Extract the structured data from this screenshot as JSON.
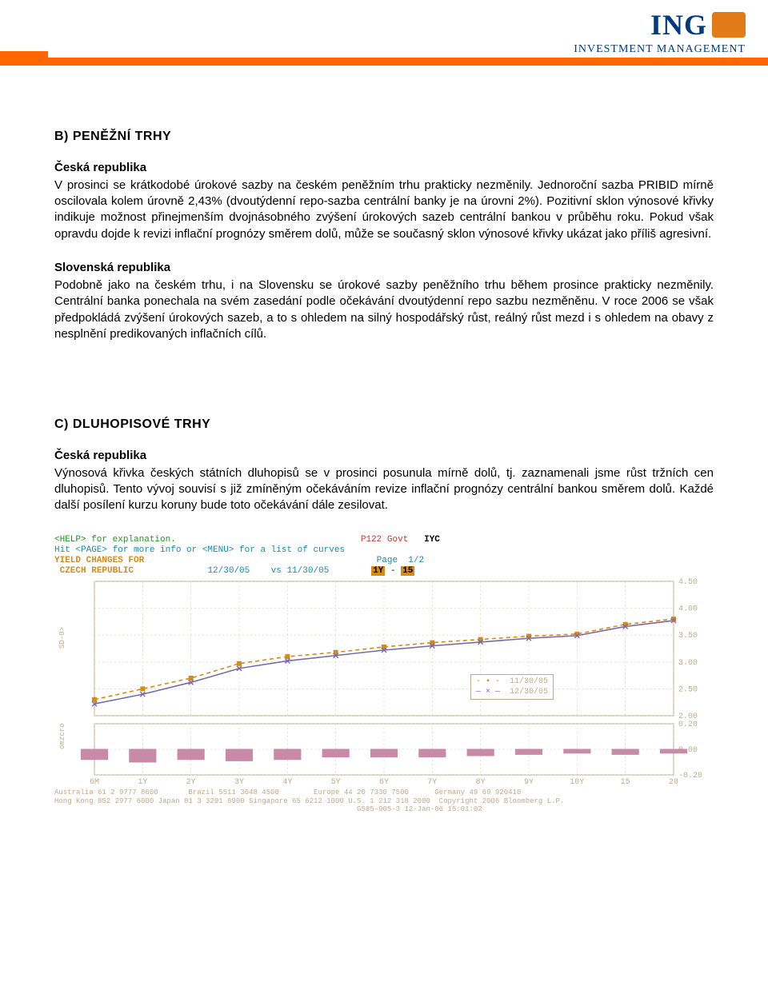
{
  "logo": {
    "brand": "ING",
    "subtitle": "INVESTMENT MANAGEMENT",
    "brand_color": "#003a80",
    "accent_color": "#ff6600",
    "lion_color": "#e27a18"
  },
  "section_b": {
    "title": "B) PENĚŽNÍ TRHY",
    "cz_sub": "Česká republika",
    "cz_body": "V prosinci se krátkodobé úrokové sazby na českém peněžním trhu prakticky nezměnily. Jednoroční sazba PRIBID mírně oscilovala kolem úrovně 2,43% (dvoutýdenní repo-sazba centrální banky je na úrovni 2%). Pozitivní sklon výnosové křivky indikuje možnost přinejmenším dvojnásobného zvýšení úrokových sazeb centrální bankou v průběhu roku. Pokud však opravdu dojde k revizi inflační prognózy směrem dolů, může se současný sklon výnosové křivky ukázat jako příliš agresivní.",
    "sk_sub": "Slovenská republika",
    "sk_body": "Podobně jako na českém trhu, i na Slovensku se úrokové sazby peněžního trhu během prosince prakticky nezměnily. Centrální banka ponechala na svém zasedání podle očekávání dvoutýdenní repo sazbu nezměněnu. V roce 2006 se však předpokládá zvýšení úrokových sazeb, a to s ohledem na silný hospodářský růst, reálný růst mezd i s ohledem na obavy z nesplnění predikovaných inflačních cílů."
  },
  "section_c": {
    "title": "C) DLUHOPISOVÉ TRHY",
    "cz_sub": "Česká republika",
    "cz_body": "Výnosová křivka českých státních dluhopisů se v prosinci posunula mírně dolů, tj. zaznamenali jsme růst tržních cen dluhopisů. Tento vývoj souvisí s již zmíněným očekáváním revize inflační prognózy centrální bankou směrem dolů. Každé další posílení kurzu koruny bude toto očekávání dále zesilovat."
  },
  "chart": {
    "help_line": "<HELP> for explanation.",
    "menu_line": "Hit <PAGE> for more info or <MENU> for a list of curves",
    "title_line": "YIELD CHANGES FOR",
    "p_label": "P122 Govt",
    "iyc": "IYC",
    "country": "CZECH REPUBLIC",
    "page_label": "Page",
    "page_val": "1/2",
    "date1": "12/30/05",
    "vs": "vs",
    "date2": "11/30/05",
    "range_from": "1Y",
    "range_to": "15",
    "ylabel": "SD-0>",
    "y2label": "omzcro",
    "type": "line",
    "ylim": [
      2.0,
      4.5
    ],
    "ytick_step": 0.5,
    "yticks": [
      "4.50",
      "4.00",
      "3.50",
      "3.00",
      "2.50",
      "2.00"
    ],
    "x_tenors": [
      "6M",
      "1Y",
      "2Y",
      "3Y",
      "4Y",
      "5Y",
      "6Y",
      "7Y",
      "8Y",
      "9Y",
      "10Y",
      "15",
      "20"
    ],
    "series1": {
      "label": "11/30/05",
      "color": "#d68a1a",
      "marker": "square",
      "dash": "5,4",
      "values": [
        2.3,
        2.5,
        2.7,
        2.97,
        3.1,
        3.18,
        3.28,
        3.36,
        3.42,
        3.48,
        3.52,
        3.7,
        3.8
      ]
    },
    "series2": {
      "label": "12/30/05",
      "color": "#7a6aa8",
      "marker": "x",
      "dash": "none",
      "values": [
        2.22,
        2.4,
        2.62,
        2.88,
        3.02,
        3.12,
        3.22,
        3.3,
        3.37,
        3.44,
        3.49,
        3.66,
        3.77
      ]
    },
    "change_bars": {
      "color": "#c98aa8",
      "ylim": [
        -0.2,
        0.2
      ],
      "yticks": [
        "0.20",
        "0.00",
        "-0.20"
      ],
      "values": [
        -0.08,
        -0.1,
        -0.08,
        -0.09,
        -0.08,
        -0.06,
        -0.06,
        -0.06,
        -0.05,
        -0.04,
        -0.03,
        -0.04,
        -0.03
      ]
    },
    "grid_color": "#d8ccb8",
    "axis_color": "#bfa98a",
    "background": "#ffffff",
    "footer1": "Australia 61 2 9777 8600       Brazil 5511 3048 4500        Europe 44 20 7330 7500      Germany 49 69 920410",
    "footer2": "Hong Kong 852 2977 6000 Japan 81 3 3201 8900 Singapore 65 6212 1000 U.S. 1 212 318 2000  Copyright 2006 Bloomberg L.P.",
    "footer3": "                                                                      G585-905-3 12-Jan-06 15:01:02"
  }
}
